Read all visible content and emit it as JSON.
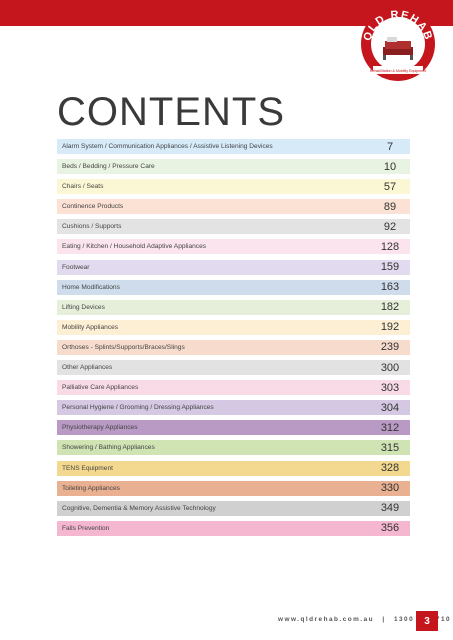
{
  "brand": {
    "name": "QLD REHAB",
    "tagline": "Rehabilitation & Mobility Equipment",
    "color": "#c4161c"
  },
  "title": "CONTENTS",
  "entries": [
    {
      "label": "Alarm System / Communication Appliances / Assistive Listening Devices",
      "page": "7",
      "color": "#d6eaf8"
    },
    {
      "label": "Beds / Bedding / Pressure Care",
      "page": "10",
      "color": "#e8f3e1"
    },
    {
      "label": "Chairs / Seats",
      "page": "57",
      "color": "#fbf6d3"
    },
    {
      "label": "Continence Products",
      "page": "89",
      "color": "#fbe2d4"
    },
    {
      "label": "Cushions / Supports",
      "page": "92",
      "color": "#e3e3e3"
    },
    {
      "label": "Eating / Kitchen / Household Adaptive Appliances",
      "page": "128",
      "color": "#fbe4ee"
    },
    {
      "label": "Footwear",
      "page": "159",
      "color": "#e2dbef"
    },
    {
      "label": "Home Modifications",
      "page": "163",
      "color": "#cfdcec"
    },
    {
      "label": "Lifting Devices",
      "page": "182",
      "color": "#e6efd9"
    },
    {
      "label": "Mobility Appliances",
      "page": "192",
      "color": "#fcefd3"
    },
    {
      "label": "Orthoses - Splints/Supports/Braces/Slings",
      "page": "239",
      "color": "#f7dccd"
    },
    {
      "label": "Other Appliances",
      "page": "300",
      "color": "#e2e2e2"
    },
    {
      "label": "Palliative Care Appliances",
      "page": "303",
      "color": "#f9dbe7"
    },
    {
      "label": "Personal Hygiene / Grooming / Dressing Appliances",
      "page": "304",
      "color": "#d5c8e3"
    },
    {
      "label": "Physiotherapy Appliances",
      "page": "312",
      "color": "#b89ac5"
    },
    {
      "label": "Showering / Bathing Appliances",
      "page": "315",
      "color": "#cfe3b3"
    },
    {
      "label": "TENS Equipment",
      "page": "328",
      "color": "#f3d98f"
    },
    {
      "label": "Toileting Appliances",
      "page": "330",
      "color": "#e9b091"
    },
    {
      "label": "Cognitive, Dementia & Memory Assistive Technology",
      "page": "349",
      "color": "#d0d0d0"
    },
    {
      "label": "Falls Prevention",
      "page": "356",
      "color": "#f4b7cf"
    }
  ],
  "footer": {
    "website": "www.qldrehab.com.au",
    "separator": "|",
    "phone": "1300 743 710",
    "page_number": "3"
  }
}
